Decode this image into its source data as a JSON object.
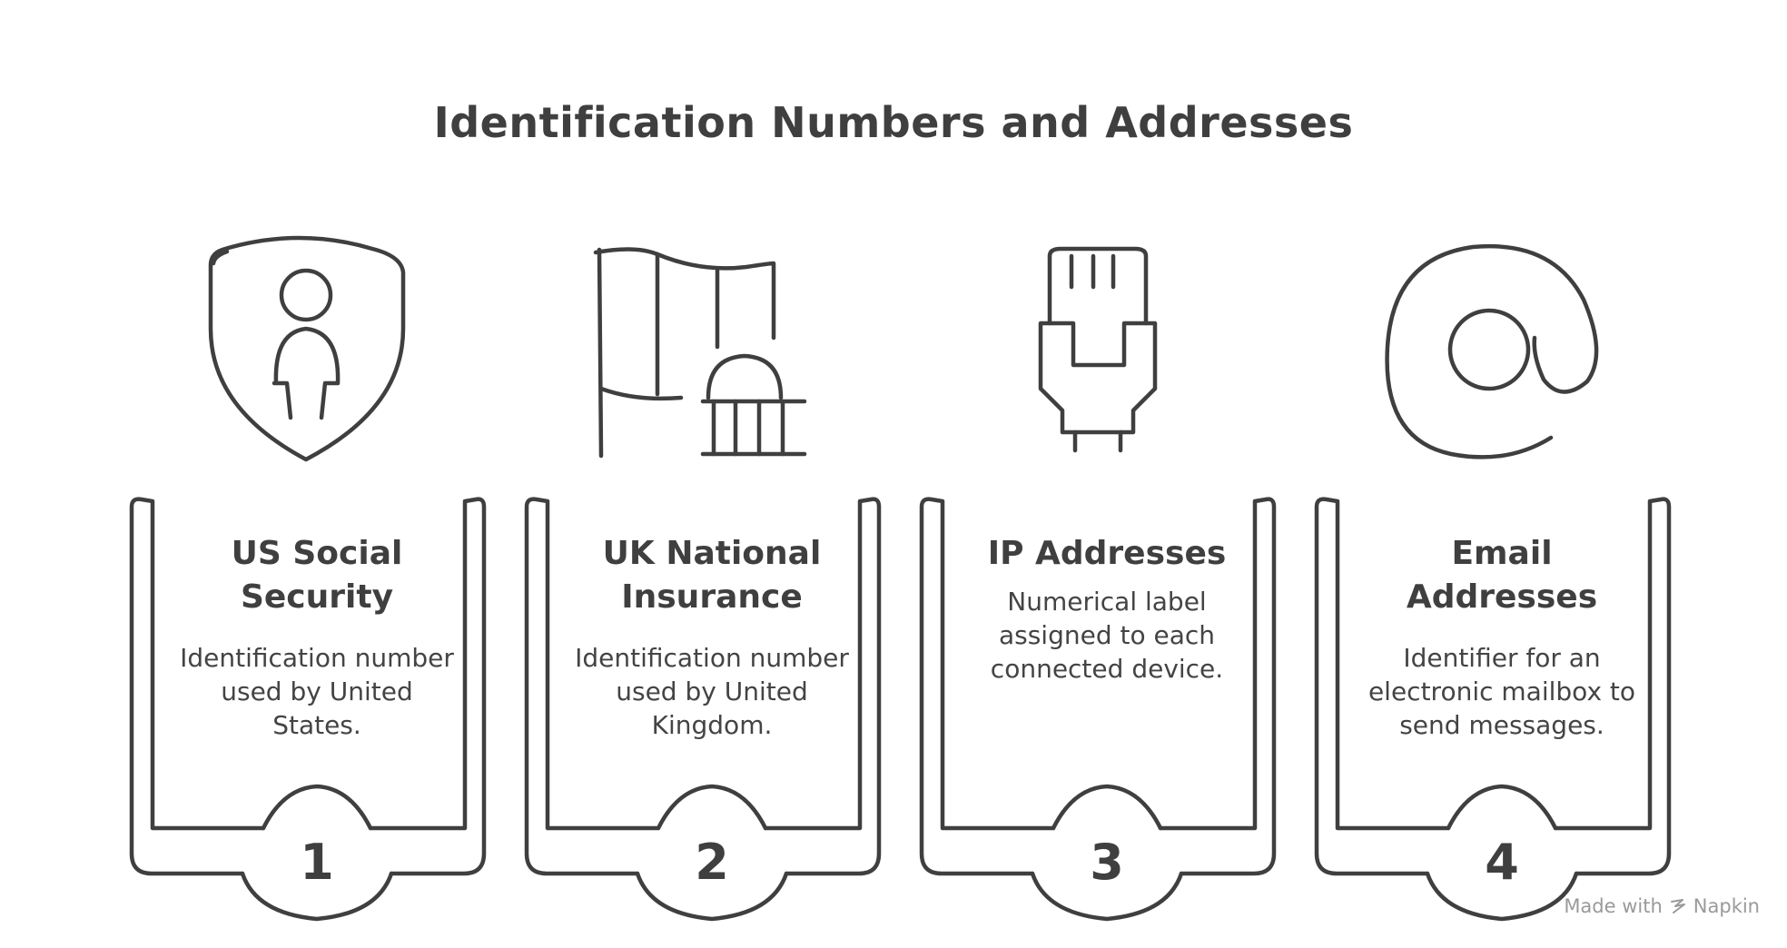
{
  "title": "Identification Numbers and Addresses",
  "items": [
    {
      "number": "1",
      "heading": "US Social Security",
      "description": "Identification number used by United States.",
      "icon": "shield-person-icon"
    },
    {
      "number": "2",
      "heading": "UK National Insurance",
      "description": "Identification number used by United Kingdom.",
      "icon": "flag-building-icon"
    },
    {
      "number": "3",
      "heading": "IP Addresses",
      "description": "Numerical label assigned to each connected device.",
      "icon": "network-plug-icon"
    },
    {
      "number": "4",
      "heading": "Email Addresses",
      "description": "Identifier for an electronic mailbox to send messages.",
      "icon": "at-sign-icon"
    }
  ],
  "watermark": {
    "prefix": "Made with",
    "brand": "Napkin"
  },
  "colors": {
    "ink": "#3f3f3f",
    "watermark": "#9a9a9a",
    "background": "#ffffff"
  }
}
